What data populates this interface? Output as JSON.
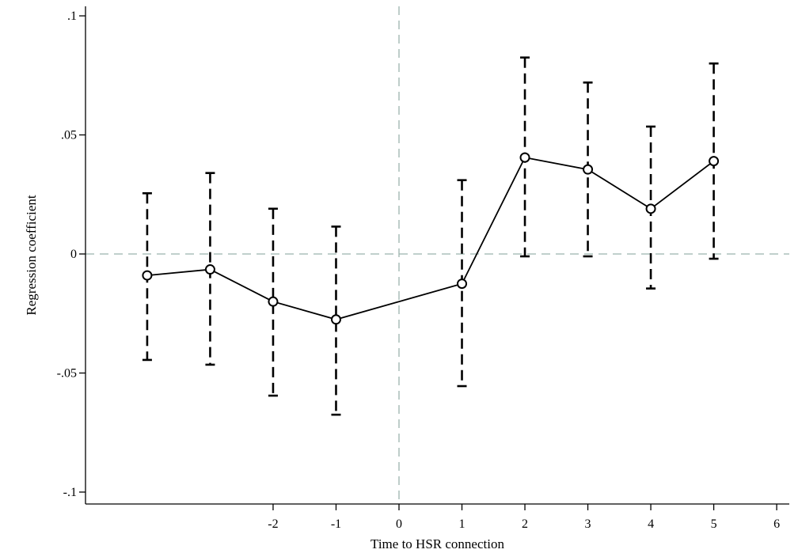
{
  "chart_data": {
    "type": "line",
    "title": "",
    "xlabel": "Time to HSR connection",
    "ylabel": "Regression coefficient",
    "xlim": [
      -4.98,
      6.2
    ],
    "ylim": [
      -0.105,
      0.104
    ],
    "x_ticks": [
      {
        "value": -2,
        "label": "-2"
      },
      {
        "value": -1,
        "label": "-1"
      },
      {
        "value": 0,
        "label": "0"
      },
      {
        "value": 1,
        "label": "1"
      },
      {
        "value": 2,
        "label": "2"
      },
      {
        "value": 3,
        "label": "3"
      },
      {
        "value": 4,
        "label": "4"
      },
      {
        "value": 5,
        "label": "5"
      },
      {
        "value": 6,
        "label": "6"
      }
    ],
    "y_ticks": [
      {
        "value": 0.1,
        "label": ".1"
      },
      {
        "value": 0.05,
        "label": ".05"
      },
      {
        "value": 0,
        "label": "0"
      },
      {
        "value": -0.05,
        "label": "-.05"
      },
      {
        "value": -0.1,
        "label": "-.1"
      }
    ],
    "reference_lines": {
      "x": 0,
      "y": 0
    },
    "grid": false,
    "series": [
      {
        "x": [
          -4,
          -3,
          -2,
          -1,
          1,
          2,
          3,
          4,
          5
        ],
        "values": [
          -0.009,
          -0.0065,
          -0.02,
          -0.0275,
          -0.0125,
          0.0405,
          0.0355,
          0.019,
          0.039
        ],
        "ci_low": [
          -0.0445,
          -0.0465,
          -0.0595,
          -0.0675,
          -0.0555,
          -0.001,
          -0.001,
          -0.0145,
          -0.002
        ],
        "ci_high": [
          0.0255,
          0.034,
          0.019,
          0.0115,
          0.031,
          0.0825,
          0.072,
          0.0535,
          0.08
        ]
      }
    ],
    "colors": {
      "line": "#000000",
      "axis": "#000000",
      "reference": "#9bb3ad"
    }
  }
}
